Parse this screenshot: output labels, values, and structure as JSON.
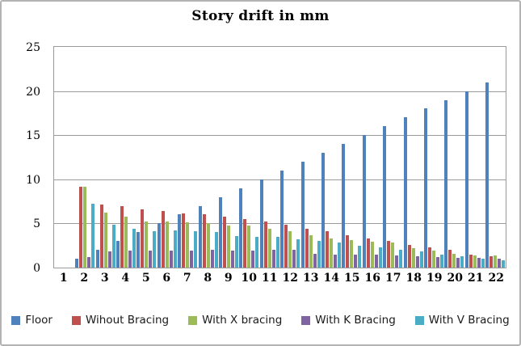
{
  "title": "Story drift in mm",
  "y_axis": {
    "ticks": [
      0,
      5,
      10,
      15,
      20,
      25
    ]
  },
  "x_axis": {
    "categories": [
      "1",
      "2",
      "3",
      "4",
      "5",
      "6",
      "7",
      "8",
      "9",
      "10",
      "11",
      "12",
      "13",
      "14",
      "15",
      "16",
      "17",
      "18",
      "19",
      "20",
      "21",
      "22"
    ]
  },
  "legend": {
    "position": "bottom"
  },
  "colors": {
    "floor": "#4F81BD",
    "without_bracing": "#C0504D",
    "x_bracing": "#9BBB59",
    "k_bracing": "#8064A2",
    "v_bracing": "#4BACC6"
  },
  "chart_data": {
    "type": "bar",
    "title": "Story drift in mm",
    "categories": [
      1,
      2,
      3,
      4,
      5,
      6,
      7,
      8,
      9,
      10,
      11,
      12,
      13,
      14,
      15,
      16,
      17,
      18,
      19,
      20,
      21,
      22
    ],
    "xlabel": "",
    "ylabel": "",
    "ylim": [
      0,
      25
    ],
    "yticks": [
      0,
      5,
      10,
      15,
      20,
      25
    ],
    "grid": true,
    "legend_position": "bottom",
    "series": [
      {
        "name": "Floor",
        "color": "#4F81BD",
        "values": [
          0,
          1,
          2,
          3,
          4,
          5,
          6,
          7,
          8,
          9,
          10,
          11,
          12,
          13,
          14,
          15,
          16,
          17,
          18,
          19,
          20,
          21
        ]
      },
      {
        "name": "Wihout Bracing",
        "color": "#C0504D",
        "values": [
          0,
          9.2,
          7.1,
          7.0,
          6.6,
          6.4,
          6.1,
          6.0,
          5.8,
          5.5,
          5.2,
          4.9,
          4.4,
          4.1,
          3.7,
          3.3,
          3.0,
          2.6,
          2.3,
          2.0,
          1.5,
          1.3
        ]
      },
      {
        "name": "With X bracing",
        "color": "#9BBB59",
        "values": [
          0,
          9.2,
          6.2,
          5.8,
          5.2,
          5.2,
          5.1,
          5.0,
          4.8,
          4.8,
          4.4,
          4.1,
          3.7,
          3.3,
          3.1,
          2.9,
          2.8,
          2.2,
          1.9,
          1.6,
          1.4,
          1.4
        ]
      },
      {
        "name": "With K Bracing",
        "color": "#8064A2",
        "values": [
          0,
          1.2,
          1.8,
          1.9,
          1.9,
          1.9,
          1.9,
          2.0,
          1.9,
          1.9,
          2.0,
          2.0,
          1.6,
          1.5,
          1.5,
          1.5,
          1.4,
          1.3,
          1.2,
          1.1,
          1.1,
          1.0
        ]
      },
      {
        "name": "With V Bracing",
        "color": "#4BACC6",
        "values": [
          0,
          7.2,
          4.9,
          4.4,
          4.1,
          4.2,
          4.1,
          4.0,
          3.6,
          3.5,
          3.5,
          3.2,
          3.0,
          2.8,
          2.5,
          2.3,
          2.0,
          1.8,
          1.5,
          1.3,
          1.0,
          0.8
        ]
      }
    ]
  }
}
